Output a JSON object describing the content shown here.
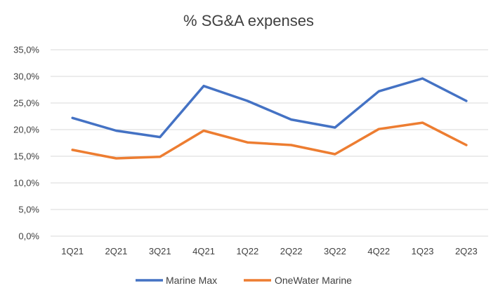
{
  "chart_data": {
    "type": "line",
    "title": "% SG&A expenses",
    "xlabel": "",
    "ylabel": "",
    "categories": [
      "1Q21",
      "2Q21",
      "3Q21",
      "4Q21",
      "1Q22",
      "2Q22",
      "3Q22",
      "4Q22",
      "1Q23",
      "2Q23"
    ],
    "ylim": [
      0,
      35
    ],
    "yticks": [
      "0,0%",
      "5,0%",
      "10,0%",
      "15,0%",
      "20,0%",
      "25,0%",
      "30,0%",
      "35,0%"
    ],
    "grid": true,
    "legend_position": "bottom",
    "series": [
      {
        "name": "Marine Max",
        "color": "#4472C4",
        "values": [
          22.2,
          19.8,
          18.6,
          28.2,
          25.4,
          21.9,
          20.4,
          27.2,
          29.6,
          25.4
        ]
      },
      {
        "name": "OneWater Marine",
        "color": "#ED7D31",
        "values": [
          16.2,
          14.6,
          14.9,
          19.8,
          17.6,
          17.1,
          15.4,
          20.1,
          21.3,
          17.1
        ]
      }
    ]
  }
}
